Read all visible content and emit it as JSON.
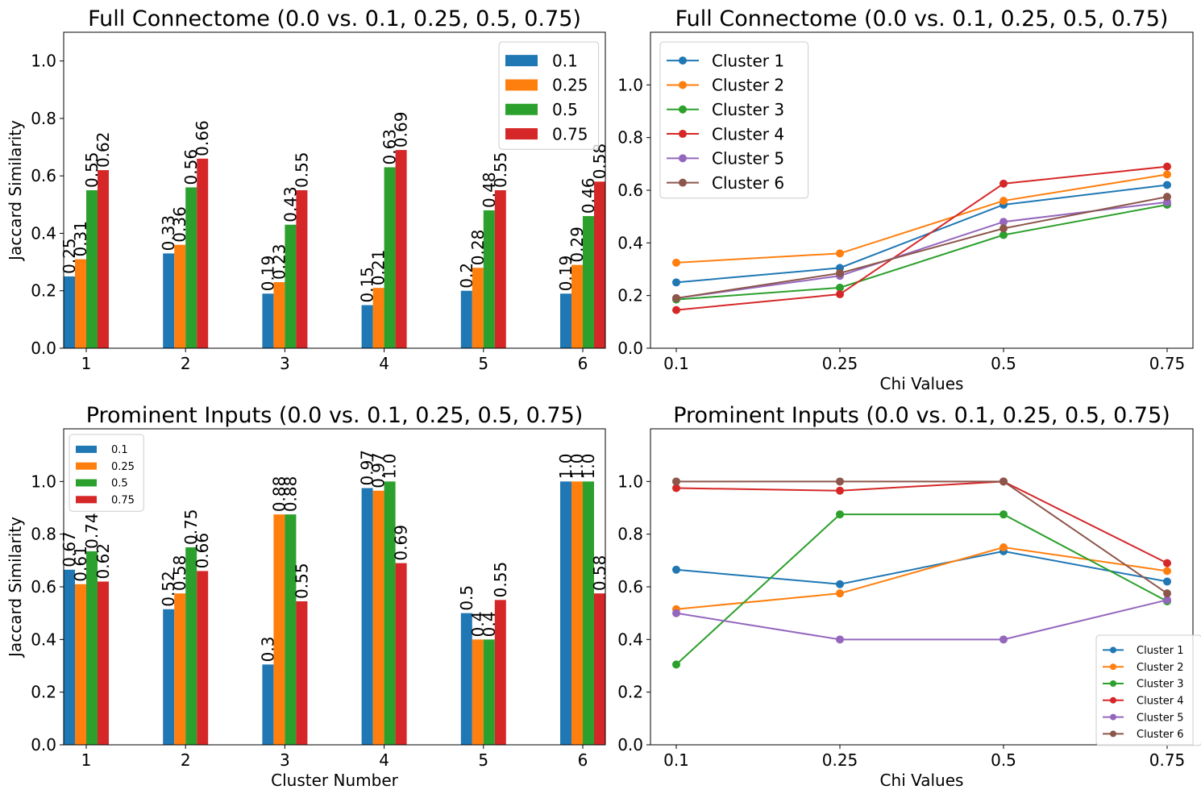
{
  "colors": [
    "#1f77b4",
    "#ff7f0e",
    "#2ca02c",
    "#d62728",
    "#9467bd",
    "#8c564b"
  ],
  "chart_data": [
    {
      "type": "bar",
      "title": "Full Connectome (0.0 vs. 0.1, 0.25, 0.5, 0.75)",
      "xlabel": "",
      "ylabel": "Jaccard Similarity",
      "categories": [
        "1",
        "2",
        "3",
        "4",
        "5",
        "6"
      ],
      "ylim": [
        0,
        1.1
      ],
      "yticks": [
        "0.0",
        "0.2",
        "0.4",
        "0.6",
        "0.8",
        "1.0"
      ],
      "legend_position": "top-right",
      "series": [
        {
          "name": "0.1",
          "values": [
            0.25,
            0.33,
            0.19,
            0.15,
            0.2,
            0.19
          ],
          "labels": [
            "0.25",
            "0.33",
            "0.19",
            "0.15",
            "0.2",
            "0.19"
          ]
        },
        {
          "name": "0.25",
          "values": [
            0.31,
            0.36,
            0.23,
            0.21,
            0.28,
            0.29
          ],
          "labels": [
            "0.31",
            "0.36",
            "0.23",
            "0.21",
            "0.28",
            "0.29"
          ]
        },
        {
          "name": "0.5",
          "values": [
            0.55,
            0.56,
            0.43,
            0.63,
            0.48,
            0.46
          ],
          "labels": [
            "0.55",
            "0.56",
            "0.43",
            "0.63",
            "0.48",
            "0.46"
          ]
        },
        {
          "name": "0.75",
          "values": [
            0.62,
            0.66,
            0.55,
            0.69,
            0.55,
            0.58
          ],
          "labels": [
            "0.62",
            "0.66",
            "0.55",
            "0.69",
            "0.55",
            "0.58"
          ]
        }
      ]
    },
    {
      "type": "line",
      "title": "Full Connectome (0.0 vs. 0.1, 0.25, 0.5, 0.75)",
      "xlabel": "Chi Values",
      "ylabel": "",
      "x": [
        "0.1",
        "0.25",
        "0.5",
        "0.75"
      ],
      "ylim": [
        0,
        1.2
      ],
      "yticks": [
        "0.0",
        "0.2",
        "0.4",
        "0.6",
        "0.8",
        "1.0"
      ],
      "legend_position": "top-left",
      "series": [
        {
          "name": "Cluster 1",
          "values": [
            0.25,
            0.305,
            0.545,
            0.62
          ]
        },
        {
          "name": "Cluster 2",
          "values": [
            0.325,
            0.36,
            0.56,
            0.66
          ]
        },
        {
          "name": "Cluster 3",
          "values": [
            0.185,
            0.23,
            0.43,
            0.545
          ]
        },
        {
          "name": "Cluster 4",
          "values": [
            0.145,
            0.205,
            0.625,
            0.69
          ]
        },
        {
          "name": "Cluster 5",
          "values": [
            0.19,
            0.275,
            0.48,
            0.555
          ]
        },
        {
          "name": "Cluster 6",
          "values": [
            0.19,
            0.285,
            0.455,
            0.575
          ]
        }
      ]
    },
    {
      "type": "bar",
      "title": "Prominent Inputs (0.0 vs. 0.1, 0.25, 0.5, 0.75)",
      "xlabel": "Cluster Number",
      "ylabel": "Jaccard Similarity",
      "categories": [
        "1",
        "2",
        "3",
        "4",
        "5",
        "6"
      ],
      "ylim": [
        0,
        1.2
      ],
      "yticks": [
        "0.0",
        "0.2",
        "0.4",
        "0.6",
        "0.8",
        "1.0"
      ],
      "legend_position": "top-left",
      "series": [
        {
          "name": "0.1",
          "values": [
            0.665,
            0.515,
            0.305,
            0.975,
            0.5,
            1.0
          ],
          "labels": [
            "0.67",
            "0.52",
            "0.3",
            "0.97",
            "0.5",
            "1.0"
          ]
        },
        {
          "name": "0.25",
          "values": [
            0.61,
            0.575,
            0.875,
            0.965,
            0.4,
            1.0
          ],
          "labels": [
            "0.61",
            "0.58",
            "0.88",
            "0.97",
            "0.4",
            "1.0"
          ]
        },
        {
          "name": "0.5",
          "values": [
            0.735,
            0.75,
            0.875,
            1.0,
            0.4,
            1.0
          ],
          "labels": [
            "0.74",
            "0.75",
            "0.88",
            "1.0",
            "0.4",
            "1.0"
          ]
        },
        {
          "name": "0.75",
          "values": [
            0.62,
            0.66,
            0.545,
            0.69,
            0.55,
            0.575
          ],
          "labels": [
            "0.62",
            "0.66",
            "0.55",
            "0.69",
            "0.55",
            "0.58"
          ]
        }
      ]
    },
    {
      "type": "line",
      "title": "Prominent Inputs (0.0 vs. 0.1, 0.25, 0.5, 0.75)",
      "xlabel": "Chi Values",
      "ylabel": "",
      "x": [
        "0.1",
        "0.25",
        "0.5",
        "0.75"
      ],
      "ylim": [
        0,
        1.2
      ],
      "yticks": [
        "0.0",
        "0.2",
        "0.4",
        "0.6",
        "0.8",
        "1.0"
      ],
      "legend_position": "bottom-right",
      "series": [
        {
          "name": "Cluster 1",
          "values": [
            0.665,
            0.61,
            0.735,
            0.62
          ]
        },
        {
          "name": "Cluster 2",
          "values": [
            0.515,
            0.575,
            0.75,
            0.66
          ]
        },
        {
          "name": "Cluster 3",
          "values": [
            0.305,
            0.875,
            0.875,
            0.545
          ]
        },
        {
          "name": "Cluster 4",
          "values": [
            0.975,
            0.965,
            1.0,
            0.69
          ]
        },
        {
          "name": "Cluster 5",
          "values": [
            0.5,
            0.4,
            0.4,
            0.55
          ]
        },
        {
          "name": "Cluster 6",
          "values": [
            1.0,
            1.0,
            1.0,
            0.575
          ]
        }
      ]
    }
  ]
}
